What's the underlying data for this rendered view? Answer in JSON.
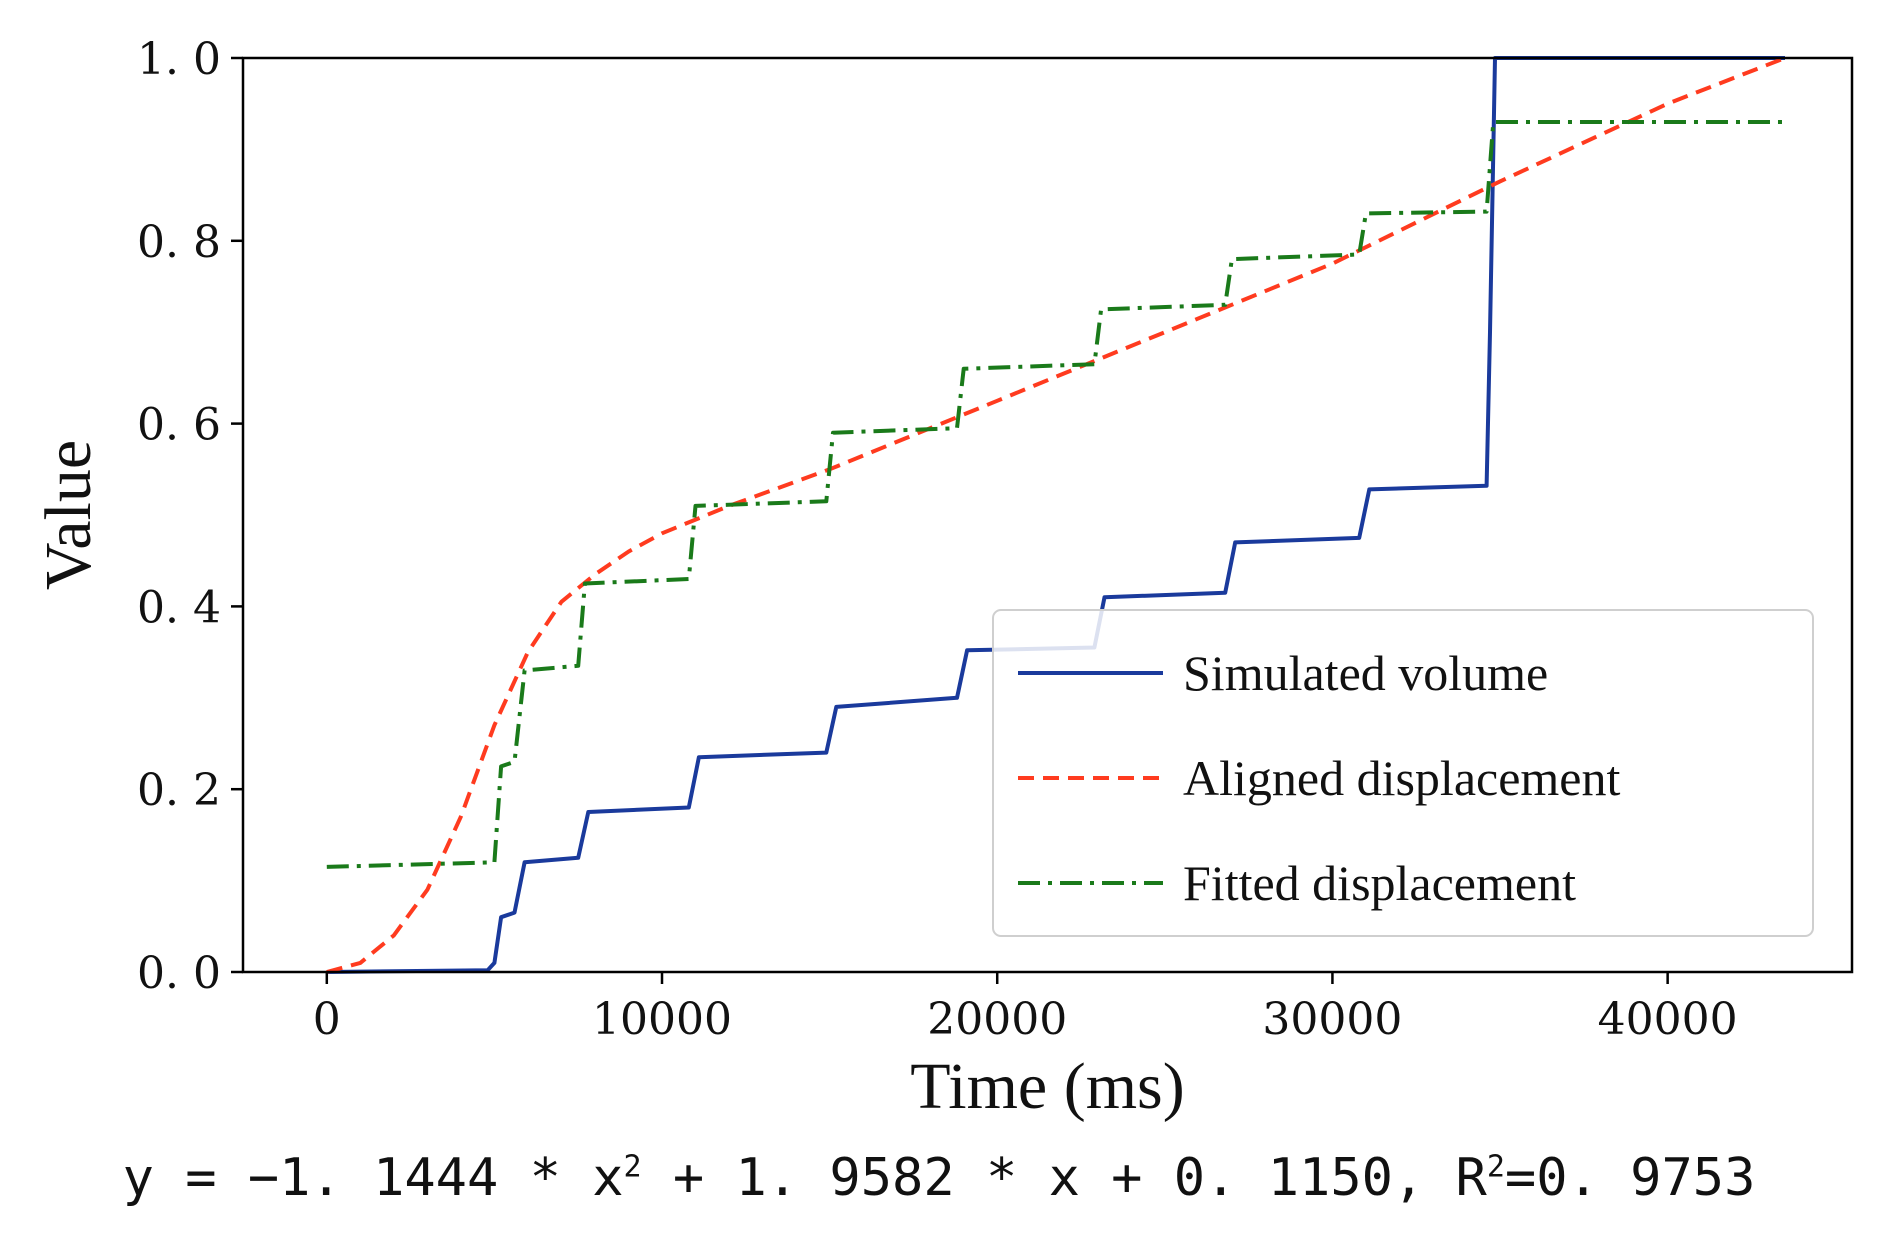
{
  "chart_data": {
    "type": "line",
    "title": "",
    "xlabel": "Time (ms)",
    "ylabel": "Value",
    "xlim": [
      -2500,
      45500
    ],
    "ylim": [
      0,
      1.0
    ],
    "xticks": [
      0,
      10000,
      20000,
      30000,
      40000
    ],
    "xtick_labels": [
      "0",
      "10000",
      "20000",
      "30000",
      "40000"
    ],
    "yticks": [
      0,
      0.2,
      0.4,
      0.6,
      0.8,
      1.0
    ],
    "ytick_labels": [
      "0. 0",
      "0. 2",
      "0. 4",
      "0. 6",
      "0. 8",
      "1. 0"
    ],
    "grid": false,
    "legend_position": "lower-right",
    "series": [
      {
        "name": "Simulated volume",
        "style": "solid",
        "color": "#1a3a9c",
        "points": [
          [
            0,
            0
          ],
          [
            4800,
            0.002
          ],
          [
            5000,
            0.01
          ],
          [
            5200,
            0.06
          ],
          [
            5600,
            0.065
          ],
          [
            5900,
            0.12
          ],
          [
            7500,
            0.125
          ],
          [
            7800,
            0.175
          ],
          [
            10800,
            0.18
          ],
          [
            11100,
            0.235
          ],
          [
            14900,
            0.24
          ],
          [
            15200,
            0.29
          ],
          [
            18800,
            0.3
          ],
          [
            19100,
            0.352
          ],
          [
            22900,
            0.355
          ],
          [
            23200,
            0.41
          ],
          [
            26800,
            0.415
          ],
          [
            27100,
            0.47
          ],
          [
            30800,
            0.475
          ],
          [
            31100,
            0.528
          ],
          [
            34600,
            0.532
          ],
          [
            34700,
            0.7
          ],
          [
            34850,
            1.0
          ],
          [
            43500,
            1.0
          ]
        ]
      },
      {
        "name": "Aligned displacement",
        "style": "dashed",
        "color": "#ff3b1f",
        "points": [
          [
            0,
            0
          ],
          [
            1000,
            0.01
          ],
          [
            2000,
            0.04
          ],
          [
            3000,
            0.09
          ],
          [
            4000,
            0.17
          ],
          [
            5000,
            0.27
          ],
          [
            6000,
            0.35
          ],
          [
            7000,
            0.405
          ],
          [
            8000,
            0.435
          ],
          [
            9000,
            0.46
          ],
          [
            10000,
            0.48
          ],
          [
            12000,
            0.51
          ],
          [
            15000,
            0.55
          ],
          [
            20000,
            0.625
          ],
          [
            25000,
            0.7
          ],
          [
            30000,
            0.775
          ],
          [
            35000,
            0.865
          ],
          [
            40000,
            0.95
          ],
          [
            43500,
            1.0
          ]
        ]
      },
      {
        "name": "Fitted displacement",
        "style": "dashdot",
        "color": "#1a7a1a",
        "points": [
          [
            0,
            0.115
          ],
          [
            5000,
            0.12
          ],
          [
            5200,
            0.225
          ],
          [
            5600,
            0.23
          ],
          [
            5900,
            0.33
          ],
          [
            7500,
            0.335
          ],
          [
            7700,
            0.425
          ],
          [
            10800,
            0.43
          ],
          [
            11000,
            0.51
          ],
          [
            14900,
            0.515
          ],
          [
            15100,
            0.59
          ],
          [
            18800,
            0.595
          ],
          [
            19000,
            0.66
          ],
          [
            22900,
            0.665
          ],
          [
            23100,
            0.725
          ],
          [
            26800,
            0.73
          ],
          [
            27000,
            0.78
          ],
          [
            30800,
            0.785
          ],
          [
            31000,
            0.83
          ],
          [
            34600,
            0.832
          ],
          [
            34800,
            0.93
          ],
          [
            43500,
            0.93
          ]
        ]
      }
    ],
    "colors": {
      "simulated": "#1a3a9c",
      "aligned": "#ff3b1f",
      "fitted": "#1a7a1a"
    }
  },
  "equation": {
    "prefix": "y = −1. 1444 * x",
    "exp1": "2",
    "middle": " + 1. 9582 * x + 0. 1150, R",
    "exp2": "2",
    "suffix": "=0. 9753"
  }
}
